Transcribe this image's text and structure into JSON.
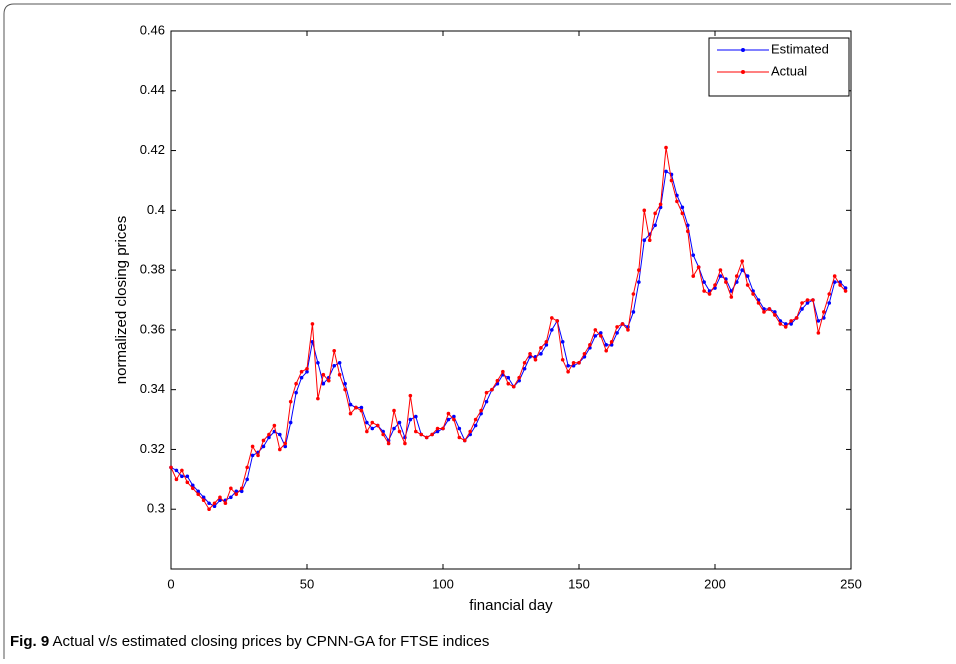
{
  "chart_data": {
    "type": "line",
    "xlabel": "financial day",
    "ylabel": "normalized closing prices",
    "caption": {
      "label": "Fig. 9",
      "text": "Actual v/s estimated closing prices by CPNN-GA for FTSE indices"
    },
    "xlim": [
      0,
      250
    ],
    "xticks": [
      0,
      50,
      100,
      150,
      200,
      250
    ],
    "ylim": [
      0.28,
      0.46
    ],
    "yticks": [
      0.3,
      0.32,
      0.34,
      0.36,
      0.38,
      0.4,
      0.42,
      0.44,
      0.46
    ],
    "legend": "upper right",
    "x": [
      0,
      2,
      4,
      6,
      8,
      10,
      12,
      14,
      16,
      18,
      20,
      22,
      24,
      26,
      28,
      30,
      32,
      34,
      36,
      38,
      40,
      42,
      44,
      46,
      48,
      50,
      52,
      54,
      56,
      58,
      60,
      62,
      64,
      66,
      68,
      70,
      72,
      74,
      76,
      78,
      80,
      82,
      84,
      86,
      88,
      90,
      92,
      94,
      96,
      98,
      100,
      102,
      104,
      106,
      108,
      110,
      112,
      114,
      116,
      118,
      120,
      122,
      124,
      126,
      128,
      130,
      132,
      134,
      136,
      138,
      140,
      142,
      144,
      146,
      148,
      150,
      152,
      154,
      156,
      158,
      160,
      162,
      164,
      166,
      168,
      170,
      172,
      174,
      176,
      178,
      180,
      182,
      184,
      186,
      188,
      190,
      192,
      194,
      196,
      198,
      200,
      202,
      204,
      206,
      208,
      210,
      212,
      214,
      216,
      218,
      220,
      222,
      224,
      226,
      228,
      230,
      232,
      234,
      236,
      238,
      240,
      242,
      244,
      246,
      248
    ],
    "series": [
      {
        "name": "Estimated",
        "color": "#0000ff",
        "values": [
          0.314,
          0.313,
          0.311,
          0.311,
          0.308,
          0.306,
          0.304,
          0.302,
          0.301,
          0.303,
          0.303,
          0.304,
          0.306,
          0.306,
          0.31,
          0.318,
          0.319,
          0.321,
          0.324,
          0.326,
          0.325,
          0.321,
          0.329,
          0.339,
          0.344,
          0.346,
          0.356,
          0.349,
          0.342,
          0.344,
          0.348,
          0.349,
          0.342,
          0.335,
          0.334,
          0.334,
          0.329,
          0.327,
          0.328,
          0.326,
          0.323,
          0.327,
          0.329,
          0.324,
          0.33,
          0.331,
          0.325,
          0.324,
          0.325,
          0.326,
          0.327,
          0.33,
          0.331,
          0.327,
          0.323,
          0.325,
          0.328,
          0.332,
          0.336,
          0.34,
          0.342,
          0.345,
          0.344,
          0.341,
          0.343,
          0.347,
          0.351,
          0.351,
          0.352,
          0.355,
          0.36,
          0.363,
          0.356,
          0.348,
          0.348,
          0.349,
          0.351,
          0.354,
          0.358,
          0.359,
          0.355,
          0.355,
          0.359,
          0.362,
          0.361,
          0.366,
          0.376,
          0.39,
          0.392,
          0.395,
          0.401,
          0.413,
          0.412,
          0.405,
          0.401,
          0.395,
          0.385,
          0.381,
          0.376,
          0.373,
          0.374,
          0.378,
          0.377,
          0.373,
          0.376,
          0.38,
          0.378,
          0.373,
          0.37,
          0.367,
          0.367,
          0.366,
          0.363,
          0.362,
          0.362,
          0.364,
          0.367,
          0.369,
          0.37,
          0.363,
          0.364,
          0.369,
          0.376,
          0.376,
          0.374
        ]
      },
      {
        "name": "Actual",
        "color": "#ff0000",
        "values": [
          0.314,
          0.31,
          0.313,
          0.309,
          0.307,
          0.305,
          0.303,
          0.3,
          0.302,
          0.304,
          0.302,
          0.307,
          0.305,
          0.307,
          0.314,
          0.321,
          0.318,
          0.323,
          0.325,
          0.328,
          0.32,
          0.322,
          0.336,
          0.342,
          0.346,
          0.347,
          0.362,
          0.337,
          0.345,
          0.343,
          0.353,
          0.345,
          0.34,
          0.332,
          0.334,
          0.333,
          0.326,
          0.329,
          0.328,
          0.325,
          0.322,
          0.333,
          0.326,
          0.322,
          0.338,
          0.326,
          0.325,
          0.324,
          0.325,
          0.327,
          0.327,
          0.332,
          0.33,
          0.324,
          0.323,
          0.326,
          0.33,
          0.333,
          0.339,
          0.34,
          0.343,
          0.346,
          0.342,
          0.341,
          0.344,
          0.349,
          0.352,
          0.35,
          0.354,
          0.356,
          0.364,
          0.363,
          0.35,
          0.346,
          0.349,
          0.349,
          0.352,
          0.355,
          0.36,
          0.358,
          0.353,
          0.356,
          0.361,
          0.362,
          0.36,
          0.372,
          0.38,
          0.4,
          0.39,
          0.399,
          0.402,
          0.421,
          0.41,
          0.403,
          0.399,
          0.393,
          0.378,
          0.381,
          0.373,
          0.372,
          0.375,
          0.38,
          0.376,
          0.371,
          0.378,
          0.383,
          0.375,
          0.372,
          0.369,
          0.366,
          0.367,
          0.365,
          0.362,
          0.361,
          0.363,
          0.364,
          0.369,
          0.37,
          0.37,
          0.359,
          0.366,
          0.372,
          0.378,
          0.375,
          0.373
        ]
      }
    ]
  }
}
